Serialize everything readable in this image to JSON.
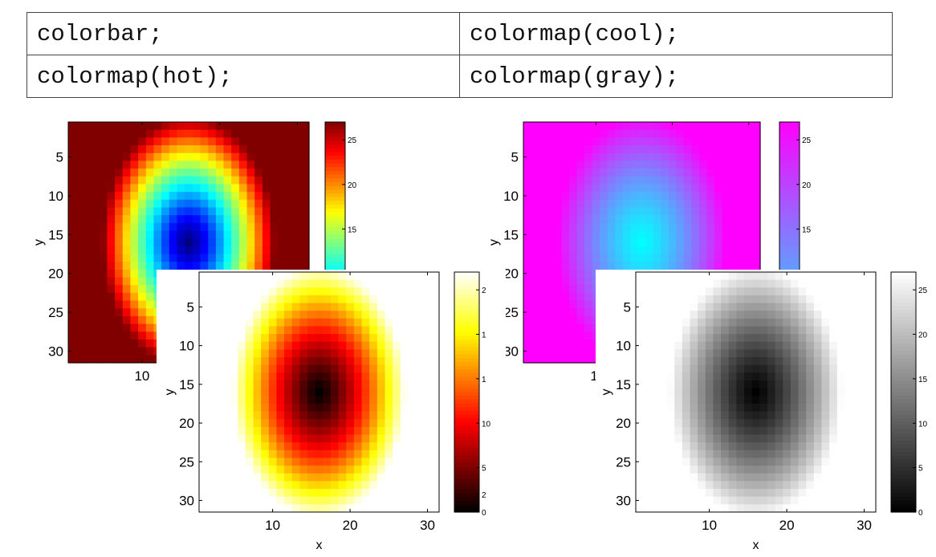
{
  "code_table": {
    "rows": [
      [
        "colorbar;",
        "colormap(cool);"
      ],
      [
        "colormap(hot);",
        "colormap(gray);"
      ]
    ]
  },
  "chart_data": [
    {
      "type": "heatmap",
      "colormap": "jet",
      "xlabel": "",
      "ylabel": "y",
      "xlim": [
        0.5,
        31.5
      ],
      "ylim": [
        0.5,
        31.5
      ],
      "y_direction": "reverse",
      "x_ticks_visible": [
        10
      ],
      "y_ticks": [
        5,
        10,
        15,
        20,
        25,
        30
      ],
      "colorbar_ticks_visible": [
        15,
        20,
        25
      ],
      "clim": [
        0,
        27
      ],
      "grid": "off"
    },
    {
      "type": "heatmap",
      "colormap": "cool",
      "xlabel": "",
      "ylabel": "y",
      "xlim": [
        0.5,
        31.5
      ],
      "ylim": [
        0.5,
        31.5
      ],
      "y_direction": "reverse",
      "x_ticks_visible": [
        "1"
      ],
      "y_ticks": [
        5,
        10,
        15,
        20,
        25,
        30
      ],
      "colorbar_ticks_visible": [
        15,
        20,
        25
      ],
      "clim": [
        0,
        27
      ],
      "grid": "off"
    },
    {
      "type": "heatmap",
      "colormap": "hot",
      "xlabel": "x",
      "ylabel": "y",
      "xlim": [
        0.5,
        31.5
      ],
      "ylim": [
        0.5,
        31.5
      ],
      "y_direction": "reverse",
      "x_ticks": [
        10,
        20,
        30
      ],
      "y_ticks": [
        5,
        10,
        15,
        20,
        25,
        30
      ],
      "colorbar_ticks": [
        0,
        5,
        10,
        "1",
        "1",
        "2",
        "2"
      ],
      "clim": [
        0,
        27
      ],
      "grid": "off"
    },
    {
      "type": "heatmap",
      "colormap": "gray",
      "xlabel": "x",
      "ylabel": "y",
      "xlim": [
        0.5,
        31.5
      ],
      "ylim": [
        0.5,
        31.5
      ],
      "y_direction": "reverse",
      "x_ticks": [
        10,
        20,
        30
      ],
      "y_ticks": [
        5,
        10,
        15,
        20,
        25,
        30
      ],
      "colorbar_ticks": [
        0,
        5,
        10,
        15,
        20,
        25
      ],
      "clim": [
        0,
        27
      ],
      "grid": "off"
    }
  ]
}
